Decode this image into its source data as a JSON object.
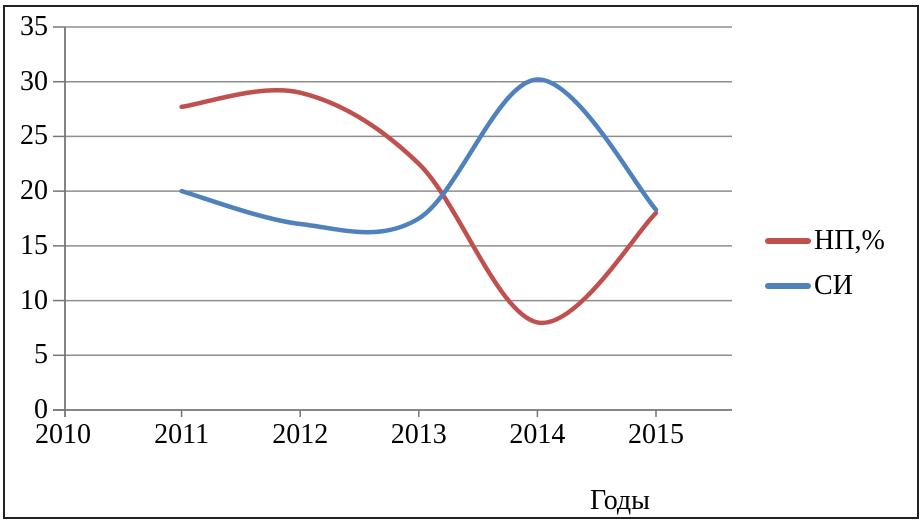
{
  "chart_data": {
    "type": "line",
    "title": "",
    "xlabel": "Годы",
    "ylabel": "",
    "categories": [
      2011,
      2012,
      2013,
      2014,
      2015
    ],
    "series": [
      {
        "name": "НП,%",
        "color": "#c0504d",
        "values": [
          27.7,
          29,
          22.5,
          8,
          18
        ]
      },
      {
        "name": "СИ",
        "color": "#4f81bd",
        "values": [
          20,
          17,
          17.5,
          30.2,
          18.3
        ]
      }
    ],
    "x_tick_labels": [
      "2010",
      "2011",
      "2012",
      "2013",
      "2014",
      "2015"
    ],
    "x_tick_years": [
      2010,
      2011,
      2012,
      2013,
      2014,
      2015
    ],
    "y_tick_labels": [
      "0",
      "5",
      "10",
      "15",
      "20",
      "25",
      "30",
      "35"
    ],
    "y_tick_values": [
      0,
      5,
      10,
      15,
      20,
      25,
      30,
      35
    ],
    "ylim": [
      0,
      35
    ],
    "xlim": [
      2010,
      2015.6
    ],
    "grid": true,
    "smooth": true,
    "legend_position": "right"
  },
  "colors": {
    "grid": "#8e8e8e",
    "axis": "#767676",
    "text": "#000000",
    "frame": "#222222",
    "background": "#ffffff"
  }
}
